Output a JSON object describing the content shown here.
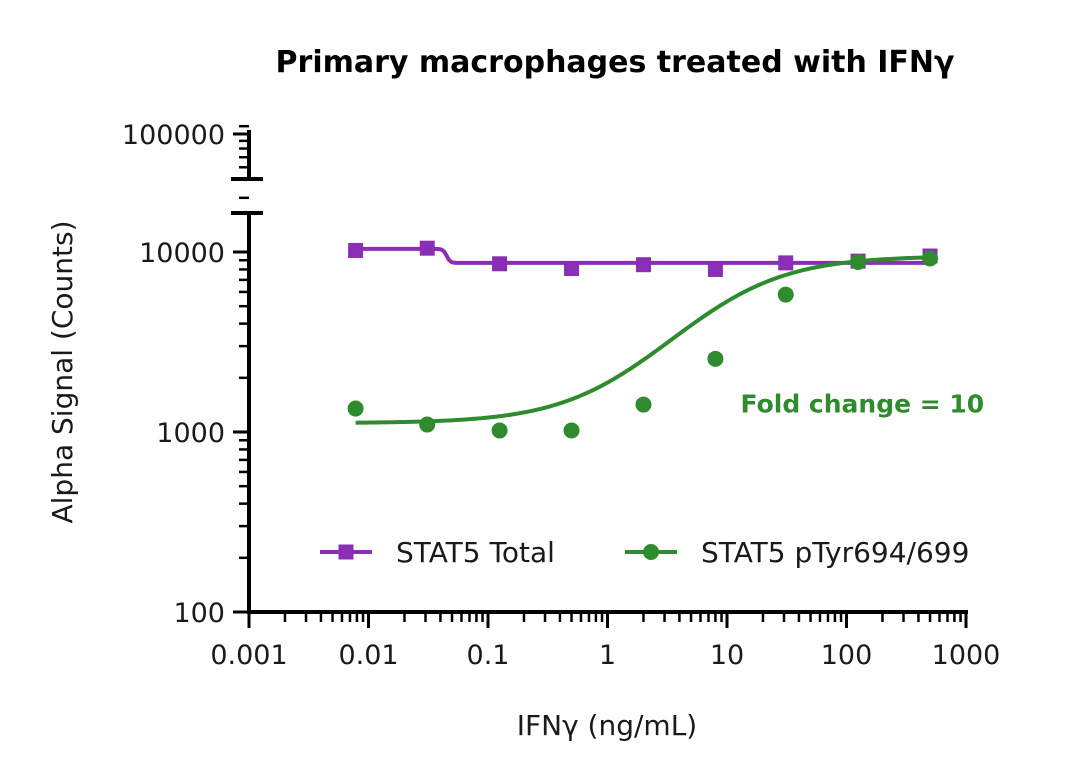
{
  "chart_data": {
    "type": "scatter",
    "title": "Primary macrophages treated with IFNγ",
    "xlabel": "IFNγ (ng/mL)",
    "ylabel": "Alpha Signal (Counts)",
    "x_scale": "log",
    "y_scale": "log",
    "xlim": [
      0.001,
      1000
    ],
    "ylim": [
      100,
      100000
    ],
    "y_axis_break": [
      20000,
      50000
    ],
    "x_tick_labels": [
      "0.001",
      "0.01",
      "0.1",
      "1",
      "10",
      "100",
      "1000"
    ],
    "y_tick_labels": [
      "100",
      "1000",
      "10000",
      "100000"
    ],
    "legend_position": "bottom-center",
    "grid": false,
    "series": [
      {
        "name": "STAT5 Total",
        "color": "#8a2fb5",
        "marker": "square",
        "x": [
          0.0078,
          0.031,
          0.125,
          0.5,
          2,
          8,
          31,
          125,
          500
        ],
        "y": [
          10200,
          10500,
          8600,
          8100,
          8500,
          8000,
          8700,
          8900,
          9500
        ],
        "fit": {
          "model": "sigmoid",
          "bottom": 10400,
          "top": 8700,
          "ec50": 0.045,
          "hill": 30
        }
      },
      {
        "name": "STAT5 pTyr694/699",
        "color": "#2e8b2e",
        "marker": "circle",
        "x": [
          0.0078,
          0.031,
          0.125,
          0.5,
          2,
          8,
          31,
          125,
          500
        ],
        "y": [
          1350,
          1100,
          1020,
          1020,
          1420,
          2550,
          5800,
          8800,
          9200
        ],
        "fit": {
          "model": "sigmoid",
          "bottom": 1120,
          "top": 9500,
          "ec50": 10,
          "hill": 1
        }
      }
    ],
    "annotations": [
      {
        "text": "Fold change = 10",
        "color": "#2e8b2e",
        "x": 50,
        "y": 1420
      }
    ]
  }
}
